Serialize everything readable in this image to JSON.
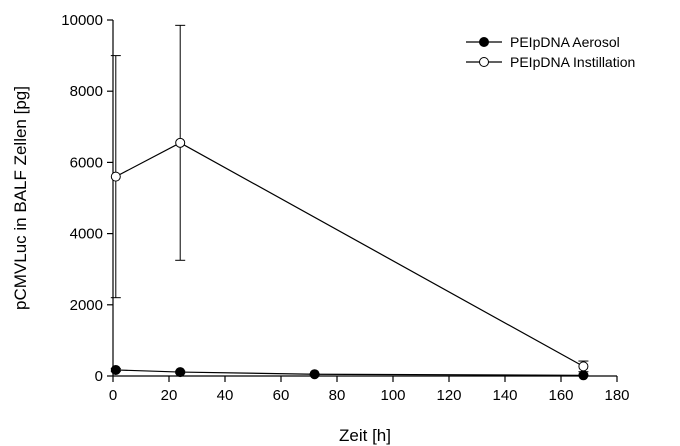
{
  "chart_data": {
    "type": "line",
    "title": "",
    "xlabel": "Zeit [h]",
    "ylabel": "pCMVLuc in BALF Zellen [pg]",
    "xlim": [
      0,
      180
    ],
    "ylim": [
      0,
      10000
    ],
    "xticks": [
      0,
      20,
      40,
      60,
      80,
      100,
      120,
      140,
      160,
      180
    ],
    "yticks": [
      0,
      2000,
      4000,
      6000,
      8000,
      10000
    ],
    "grid": false,
    "legend_position": "top-right",
    "series": [
      {
        "name": "PEIpDNA Aerosol",
        "marker": "filled-circle",
        "color": "#000000",
        "points": [
          {
            "x": 1,
            "y": 170,
            "err": 40
          },
          {
            "x": 24,
            "y": 110,
            "err": 30
          },
          {
            "x": 72,
            "y": 50,
            "err": 15
          },
          {
            "x": 168,
            "y": 20,
            "err": 10
          }
        ]
      },
      {
        "name": "PEIpDNA Instillation",
        "marker": "open-circle",
        "color": "#000000",
        "points": [
          {
            "x": 1,
            "y": 5600,
            "err": 3400
          },
          {
            "x": 24,
            "y": 6550,
            "err": 3300
          },
          {
            "x": 168,
            "y": 270,
            "err": 150
          }
        ]
      }
    ]
  }
}
